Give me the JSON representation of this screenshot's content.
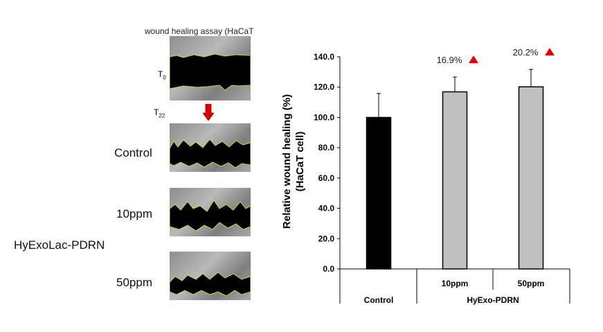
{
  "figure": {
    "assay_title": "wound healing assay (HaCaT",
    "time_start": "T",
    "time_start_sub": "0",
    "time_end": "T",
    "time_end_sub": "22",
    "rows": [
      "Control",
      "10ppm",
      "50ppm"
    ],
    "group_label": "HyExoLac-PDRN",
    "arrow_color": "#e00000"
  },
  "chart_data": {
    "type": "bar",
    "categories": [
      "Control",
      "10ppm",
      "50ppm"
    ],
    "values": [
      100.0,
      116.9,
      120.2
    ],
    "errors": [
      15.8,
      9.8,
      11.5
    ],
    "colors": [
      "#000000",
      "#c0c0c0",
      "#c0c0c0"
    ],
    "annotations": [
      null,
      "16.9%",
      "20.2%"
    ],
    "annotation_marker_color": "#e00000",
    "ylabel_line1": "Relative wound healing (%)",
    "ylabel_line2": "(HaCaT cell)",
    "ylim": [
      0,
      140
    ],
    "yticks": [
      "0.0",
      "20.0",
      "40.0",
      "60.0",
      "80.0",
      "100.0",
      "120.0",
      "140.0"
    ],
    "group_labels": [
      "Control",
      "HyExo-PDRN"
    ],
    "grid": false
  }
}
